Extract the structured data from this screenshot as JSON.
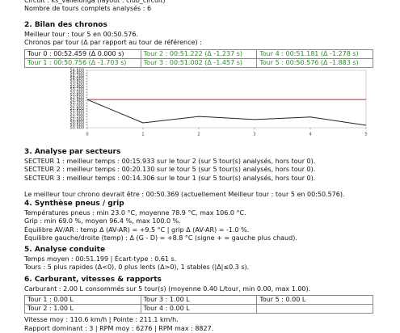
{
  "header": {
    "lines": [
      "Circuit : ks_vallelunga (layout : club_circuit)",
      "Nombre de tours complets analysés : 6"
    ]
  },
  "sections": [
    {
      "title": "2. Bilan des chronos",
      "lines": [
        "Meilleur tour : tour 5 en 00:50.576.",
        "Chronos par tour (Δ par rapport au tour de référence) :"
      ],
      "table": {
        "rows": [
          [
            {
              "text": "Tour 0 : 00:52.459 (Δ 0.000 s)",
              "green": false
            },
            {
              "text": "Tour 2 : 00:51.222 (Δ -1.237 s)",
              "green": true
            },
            {
              "text": "Tour 4 : 00:51.181 (Δ -1.278 s)",
              "green": true
            }
          ],
          [
            {
              "text": "Tour 1 : 00:50.756 (Δ -1.703 s)",
              "green": true
            },
            {
              "text": "Tour 3 : 00:51.002 (Δ -1.457 s)",
              "green": true
            },
            {
              "text": "Tour 5 : 00:50.576 (Δ -1.883 s)",
              "green": true
            }
          ]
        ]
      }
    },
    {
      "title": "3. Analyse par secteurs",
      "lines": [
        "SECTEUR 1 : meilleur temps : 00:15.933 sur le tour 2 (sur 5 tour(s) analysés, hors tour 0).",
        "SECTEUR 2 : meilleur temps : 00:20.130 sur le tour 5 (sur 5 tour(s) analysés, hors tour 0).",
        "SECTEUR 3 : meilleur temps : 00:14.306 sur le tour 1 (sur 5 tour(s) analysés, hors tour 0).",
        "Le meilleur tour chrono devrait être : 00:50.369 (actuellement Meilleur tour : tour 5 en 00:50.576)."
      ]
    },
    {
      "title": "4. Synthèse pneus / grip",
      "lines": [
        "Températures pneus : min 23.0 °C, moyenne 78.9 °C, max 106.0 °C.",
        "Grip : min 69.0 %, moyen 96.4 %, max 100.0 %.",
        "Équilibre AV/AR : temp Δ (AV-AR) = +9.5 °C | grip Δ (AV-AR) = -1.0 %.",
        "Équilibre gauche/droite (temp) : Δ (G - D) = +8.8 °C (signe + = gauche plus chaud)."
      ]
    },
    {
      "title": "5. Analyse conduite",
      "lines": [
        "Temps moyen : 00:51.199 | Écart-type : 0.61 s.",
        "Tours : 5 plus rapides (Δ<0), 0 plus lents (Δ>0), 1 stables (|Δ|≤0.3 s)."
      ]
    },
    {
      "title": "6. Carburant, vitesses & rapports",
      "lines": [
        "Carburant : 2.00 L consommés sur 5 tour(s) (moyenne 0.40 L/tour, min 0.00, max 1.00)."
      ],
      "table": {
        "rows": [
          [
            {
              "text": "Tour 1 : 0.00 L",
              "green": false
            },
            {
              "text": "Tour 3 : 1.00 L",
              "green": false
            },
            {
              "text": "Tour 5 : 0.00 L",
              "green": false
            }
          ],
          [
            {
              "text": "Tour 2 : 1.00 L",
              "green": false
            },
            {
              "text": "Tour 4 : 0.00 L",
              "green": false
            }
          ]
        ]
      },
      "after": [
        "Vitesse moy : 110.6 km/h | Pointe : 211.1 km/h.",
        "Rapport dominant : 3 | RPM moy : 6276 | RPM max : 8827."
      ]
    }
  ],
  "chart_data": {
    "type": "line",
    "x": [
      0,
      1,
      2,
      3,
      4,
      5
    ],
    "xlim": [
      0,
      5
    ],
    "xticks": [
      0,
      1,
      2,
      3,
      4,
      5
    ],
    "series": [
      {
        "color": "#222222",
        "values": [
          52.459,
          50.756,
          51.222,
          51.002,
          51.181,
          50.576
        ]
      }
    ],
    "reference": {
      "value": 52.459,
      "color": "#e0393e"
    },
    "ylim": [
      50.4,
      54.6
    ],
    "yticks": [
      {
        "value": 50.4,
        "label": "50.400"
      },
      {
        "value": 50.6,
        "label": "50.600"
      },
      {
        "value": 50.8,
        "label": "50.800"
      },
      {
        "value": 51.0,
        "label": "51.000"
      },
      {
        "value": 51.2,
        "label": "51.200"
      },
      {
        "value": 51.4,
        "label": "51.400"
      },
      {
        "value": 51.6,
        "label": "51.600"
      },
      {
        "value": 51.8,
        "label": "51.800"
      },
      {
        "value": 52.0,
        "label": "52.000"
      },
      {
        "value": 52.2,
        "label": "52.200"
      },
      {
        "value": 52.4,
        "label": "52.400"
      },
      {
        "value": 52.6,
        "label": "52.600"
      },
      {
        "value": 52.8,
        "label": "52.800"
      },
      {
        "value": 53.0,
        "label": "53.000"
      },
      {
        "value": 53.2,
        "label": "53.200"
      },
      {
        "value": 53.4,
        "label": "53.400"
      },
      {
        "value": 53.6,
        "label": "53.600"
      },
      {
        "value": 53.8,
        "label": "53.800"
      },
      {
        "value": 54.0,
        "label": "54.000"
      },
      {
        "value": 54.2,
        "label": "54.200"
      },
      {
        "value": 54.4,
        "label": "54.400"
      },
      {
        "value": 54.6,
        "label": "54.600"
      }
    ]
  }
}
